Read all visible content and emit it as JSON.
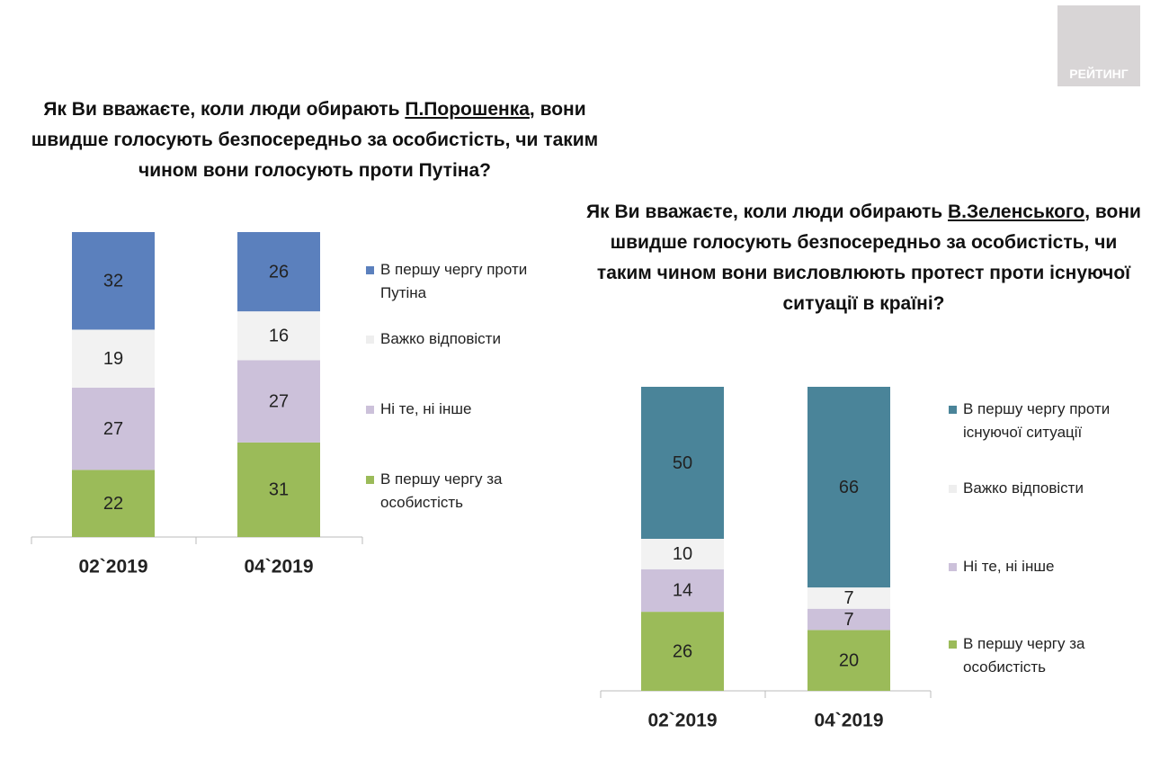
{
  "logo": "РЕЙТИНГ",
  "chart_data": [
    {
      "type": "bar",
      "stacked": true,
      "title": [
        {
          "text": "Як Ви вважаєте, коли люди обирають ",
          "underline": false
        },
        {
          "text": "П.Порошенка",
          "underline": true
        },
        {
          "text": ", вони швидше голосують безпосередньо за особистість, чи таким чином вони голосують проти Путіна?",
          "underline": false
        }
      ],
      "categories": [
        "02`2019",
        "04`2019"
      ],
      "ylim": [
        0,
        100
      ],
      "series": [
        {
          "name": "В першу чергу за особистість",
          "color": "#9bbb59",
          "values": [
            22,
            31
          ]
        },
        {
          "name": "Ні те, ні інше",
          "color": "#ccc1da",
          "values": [
            27,
            27
          ]
        },
        {
          "name": "Важко відповісти",
          "color": "#f2f2f2",
          "values": [
            19,
            16
          ]
        },
        {
          "name": "В першу чергу проти Путіна",
          "color": "#5b80bd",
          "values": [
            32,
            26
          ]
        }
      ]
    },
    {
      "type": "bar",
      "stacked": true,
      "title": [
        {
          "text": "Як Ви вважаєте, коли люди обирають ",
          "underline": false
        },
        {
          "text": "В.Зеленського",
          "underline": true
        },
        {
          "text": ", вони швидше голосують безпосередньо за особистість, чи таким чином вони висловлюють протест проти існуючої ситуації в країні?",
          "underline": false
        }
      ],
      "categories": [
        "02`2019",
        "04`2019"
      ],
      "ylim": [
        0,
        100
      ],
      "series": [
        {
          "name": "В першу чергу за особистість",
          "color": "#9bbb59",
          "values": [
            26,
            20
          ]
        },
        {
          "name": "Ні те, ні інше",
          "color": "#ccc1da",
          "values": [
            14,
            7
          ]
        },
        {
          "name": "Важко відповісти",
          "color": "#f2f2f2",
          "values": [
            10,
            7
          ]
        },
        {
          "name": "В першу чергу проти існуючої ситуації",
          "color": "#4a8499",
          "values": [
            50,
            66
          ]
        }
      ]
    }
  ]
}
